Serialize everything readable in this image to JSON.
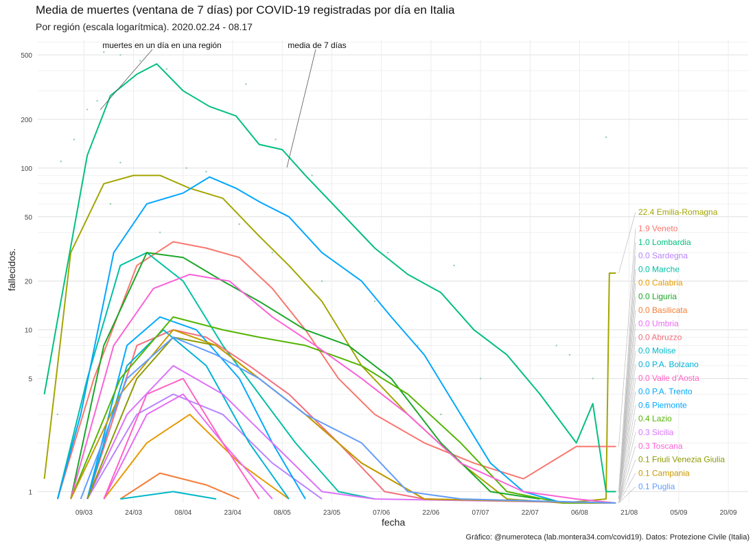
{
  "title": "Media de muertes (ventana de 7 días) por COVID-19 registradas por día en Italia",
  "subtitle": "Por región (escala logarítmica). 2020.02.24 - 08.17",
  "caption": "Gráfico: @numeroteca (lab.montera34.com/covid19). Datos: Protezione Civile (Italia)",
  "chart_data": {
    "type": "line",
    "scale": "log",
    "xlabel": "fecha",
    "ylabel": "fallecidos.",
    "x_start": "2020-02-24",
    "x_end": "2020-08-17",
    "xlim": [
      "2020-02-24",
      "2020-09-26"
    ],
    "ylim": [
      0.85,
      620
    ],
    "grid": true,
    "y_ticks": [
      1,
      5,
      10,
      20,
      50,
      100,
      200,
      500
    ],
    "x_ticks": [
      "09/03",
      "24/03",
      "08/04",
      "23/04",
      "08/05",
      "23/05",
      "07/06",
      "22/06",
      "07/07",
      "22/07",
      "06/08",
      "21/08",
      "05/09",
      "20/09"
    ],
    "annotations": [
      {
        "text": "muertes en un día en una región",
        "x": "2020-03-07",
        "y": 320
      },
      {
        "text": "media de 7 días",
        "x": "2020-05-09",
        "y": 140
      }
    ],
    "series": [
      {
        "name": "Emilia-Romagna",
        "color": "#a3a500",
        "last": "22.4",
        "points": [
          [
            "2020-02-26",
            1.2
          ],
          [
            "2020-03-05",
            30
          ],
          [
            "2020-03-15",
            80
          ],
          [
            "2020-03-24",
            90
          ],
          [
            "2020-04-01",
            90
          ],
          [
            "2020-04-10",
            75
          ],
          [
            "2020-04-20",
            65
          ],
          [
            "2020-05-01",
            38
          ],
          [
            "2020-05-10",
            25
          ],
          [
            "2020-05-20",
            15
          ],
          [
            "2020-06-01",
            6
          ],
          [
            "2020-06-15",
            3
          ],
          [
            "2020-07-01",
            1.5
          ],
          [
            "2020-07-15",
            0.9
          ],
          [
            "2020-08-01",
            0.8
          ],
          [
            "2020-08-14",
            0.9
          ],
          [
            "2020-08-15",
            22.4
          ],
          [
            "2020-08-17",
            22.4
          ]
        ]
      },
      {
        "name": "Veneto",
        "color": "#f8766d",
        "last": "1.9",
        "points": [
          [
            "2020-03-01",
            0.9
          ],
          [
            "2020-03-12",
            5
          ],
          [
            "2020-03-25",
            25
          ],
          [
            "2020-04-05",
            35
          ],
          [
            "2020-04-15",
            32
          ],
          [
            "2020-04-25",
            28
          ],
          [
            "2020-05-05",
            18
          ],
          [
            "2020-05-15",
            10
          ],
          [
            "2020-05-25",
            5
          ],
          [
            "2020-06-05",
            3
          ],
          [
            "2020-06-20",
            2
          ],
          [
            "2020-07-05",
            1.5
          ],
          [
            "2020-07-20",
            1.2
          ],
          [
            "2020-08-05",
            1.9
          ],
          [
            "2020-08-17",
            1.9
          ]
        ]
      },
      {
        "name": "Lombardia",
        "color": "#00bf7d",
        "last": "1.0",
        "points": [
          [
            "2020-02-26",
            4
          ],
          [
            "2020-03-02",
            15
          ],
          [
            "2020-03-10",
            120
          ],
          [
            "2020-03-17",
            280
          ],
          [
            "2020-03-25",
            380
          ],
          [
            "2020-03-31",
            440
          ],
          [
            "2020-04-08",
            300
          ],
          [
            "2020-04-16",
            240
          ],
          [
            "2020-04-24",
            210
          ],
          [
            "2020-05-01",
            140
          ],
          [
            "2020-05-08",
            130
          ],
          [
            "2020-05-15",
            90
          ],
          [
            "2020-05-25",
            55
          ],
          [
            "2020-06-05",
            32
          ],
          [
            "2020-06-15",
            22
          ],
          [
            "2020-06-25",
            17
          ],
          [
            "2020-07-05",
            10
          ],
          [
            "2020-07-15",
            7
          ],
          [
            "2020-07-25",
            4
          ],
          [
            "2020-08-05",
            2
          ],
          [
            "2020-08-10",
            3.5
          ],
          [
            "2020-08-14",
            1
          ],
          [
            "2020-08-17",
            1
          ]
        ]
      },
      {
        "name": "Sardegna",
        "color": "#b983ff",
        "last": "0.0",
        "points": [
          [
            "2020-03-10",
            0.9
          ],
          [
            "2020-03-25",
            3
          ],
          [
            "2020-04-05",
            4
          ],
          [
            "2020-04-20",
            3
          ],
          [
            "2020-05-05",
            1.5
          ],
          [
            "2020-05-20",
            0.9
          ]
        ]
      },
      {
        "name": "Marche",
        "color": "#00bfa5",
        "last": "0.0",
        "points": [
          [
            "2020-03-01",
            0.9
          ],
          [
            "2020-03-10",
            5
          ],
          [
            "2020-03-20",
            25
          ],
          [
            "2020-03-28",
            30
          ],
          [
            "2020-04-08",
            20
          ],
          [
            "2020-04-20",
            8
          ],
          [
            "2020-05-01",
            4
          ],
          [
            "2020-05-12",
            2
          ],
          [
            "2020-05-25",
            1
          ],
          [
            "2020-06-05",
            0.9
          ]
        ]
      },
      {
        "name": "Calabria",
        "color": "#e69a00",
        "last": "0.0",
        "points": [
          [
            "2020-03-15",
            0.9
          ],
          [
            "2020-03-28",
            2
          ],
          [
            "2020-04-10",
            3
          ],
          [
            "2020-04-25",
            1.5
          ],
          [
            "2020-05-10",
            0.9
          ]
        ]
      },
      {
        "name": "Liguria",
        "color": "#1aa628",
        "last": "0.0",
        "points": [
          [
            "2020-03-05",
            0.9
          ],
          [
            "2020-03-15",
            8
          ],
          [
            "2020-03-28",
            30
          ],
          [
            "2020-04-08",
            28
          ],
          [
            "2020-04-20",
            20
          ],
          [
            "2020-05-01",
            15
          ],
          [
            "2020-05-15",
            10
          ],
          [
            "2020-05-28",
            8
          ],
          [
            "2020-06-10",
            5
          ],
          [
            "2020-06-25",
            2
          ],
          [
            "2020-07-10",
            1
          ],
          [
            "2020-07-25",
            0.9
          ]
        ]
      },
      {
        "name": "Basilicata",
        "color": "#f47d37",
        "last": "0.0",
        "points": [
          [
            "2020-03-20",
            0.9
          ],
          [
            "2020-04-01",
            1.3
          ],
          [
            "2020-04-15",
            1.1
          ],
          [
            "2020-04-25",
            0.9
          ]
        ]
      },
      {
        "name": "Umbria",
        "color": "#e76bf3",
        "last": "0.0",
        "points": [
          [
            "2020-03-15",
            0.9
          ],
          [
            "2020-03-28",
            3
          ],
          [
            "2020-04-08",
            4
          ],
          [
            "2020-04-20",
            2
          ],
          [
            "2020-05-05",
            0.9
          ]
        ]
      },
      {
        "name": "Abruzzo",
        "color": "#f2707c",
        "last": "0.0",
        "points": [
          [
            "2020-03-10",
            0.9
          ],
          [
            "2020-03-25",
            8
          ],
          [
            "2020-04-05",
            10
          ],
          [
            "2020-04-15",
            9
          ],
          [
            "2020-04-28",
            6
          ],
          [
            "2020-05-10",
            4
          ],
          [
            "2020-05-25",
            2
          ],
          [
            "2020-06-08",
            1
          ],
          [
            "2020-06-20",
            0.9
          ]
        ]
      },
      {
        "name": "Molise",
        "color": "#00b8c8",
        "last": "0.0",
        "points": [
          [
            "2020-03-20",
            0.9
          ],
          [
            "2020-04-05",
            1
          ],
          [
            "2020-04-18",
            0.9
          ]
        ]
      },
      {
        "name": "P.A. Bolzano",
        "color": "#00b2d6",
        "last": "0.0",
        "points": [
          [
            "2020-03-10",
            0.9
          ],
          [
            "2020-03-22",
            6
          ],
          [
            "2020-04-02",
            10
          ],
          [
            "2020-04-15",
            6
          ],
          [
            "2020-04-28",
            2
          ],
          [
            "2020-05-10",
            0.9
          ]
        ]
      },
      {
        "name": "Valle d'Aosta",
        "color": "#ff61c3",
        "last": "0.0",
        "points": [
          [
            "2020-03-15",
            0.9
          ],
          [
            "2020-03-28",
            4
          ],
          [
            "2020-04-08",
            5
          ],
          [
            "2020-04-20",
            2
          ],
          [
            "2020-05-01",
            0.9
          ]
        ]
      },
      {
        "name": "P.A. Trento",
        "color": "#00a9ff",
        "last": "0.0",
        "points": [
          [
            "2020-03-10",
            0.9
          ],
          [
            "2020-03-22",
            8
          ],
          [
            "2020-04-01",
            12
          ],
          [
            "2020-04-12",
            10
          ],
          [
            "2020-04-25",
            5
          ],
          [
            "2020-05-05",
            2
          ],
          [
            "2020-05-15",
            0.9
          ]
        ]
      },
      {
        "name": "Piemonte",
        "color": "#00a6ff",
        "last": "0.6",
        "points": [
          [
            "2020-03-01",
            0.9
          ],
          [
            "2020-03-08",
            3
          ],
          [
            "2020-03-18",
            30
          ],
          [
            "2020-03-28",
            60
          ],
          [
            "2020-04-08",
            70
          ],
          [
            "2020-04-16",
            88
          ],
          [
            "2020-04-24",
            75
          ],
          [
            "2020-05-01",
            62
          ],
          [
            "2020-05-10",
            50
          ],
          [
            "2020-05-20",
            30
          ],
          [
            "2020-06-01",
            20
          ],
          [
            "2020-06-10",
            12
          ],
          [
            "2020-06-20",
            7
          ],
          [
            "2020-07-01",
            3
          ],
          [
            "2020-07-10",
            1.5
          ],
          [
            "2020-07-20",
            1
          ],
          [
            "2020-08-01",
            0.8
          ],
          [
            "2020-08-17",
            0.6
          ]
        ]
      },
      {
        "name": "Lazio",
        "color": "#53b400",
        "last": "0.4",
        "points": [
          [
            "2020-03-05",
            0.9
          ],
          [
            "2020-03-20",
            5
          ],
          [
            "2020-04-05",
            12
          ],
          [
            "2020-04-20",
            10
          ],
          [
            "2020-05-01",
            9
          ],
          [
            "2020-05-15",
            8
          ],
          [
            "2020-06-01",
            6
          ],
          [
            "2020-06-15",
            4
          ],
          [
            "2020-07-01",
            2
          ],
          [
            "2020-07-15",
            1
          ],
          [
            "2020-08-01",
            0.8
          ],
          [
            "2020-08-17",
            0.4
          ]
        ]
      },
      {
        "name": "Sicilia",
        "color": "#db72fb",
        "last": "0.3",
        "points": [
          [
            "2020-03-10",
            0.9
          ],
          [
            "2020-03-22",
            3
          ],
          [
            "2020-04-05",
            6
          ],
          [
            "2020-04-20",
            4
          ],
          [
            "2020-05-05",
            2
          ],
          [
            "2020-05-20",
            1
          ],
          [
            "2020-06-05",
            0.9
          ],
          [
            "2020-08-17",
            0.3
          ]
        ]
      },
      {
        "name": "Toscana",
        "color": "#fb61d7",
        "last": "0.3",
        "points": [
          [
            "2020-03-05",
            0.9
          ],
          [
            "2020-03-18",
            8
          ],
          [
            "2020-03-30",
            18
          ],
          [
            "2020-04-10",
            22
          ],
          [
            "2020-04-22",
            20
          ],
          [
            "2020-05-05",
            12
          ],
          [
            "2020-05-18",
            8
          ],
          [
            "2020-06-01",
            5
          ],
          [
            "2020-06-15",
            3
          ],
          [
            "2020-07-01",
            1.5
          ],
          [
            "2020-07-20",
            1
          ],
          [
            "2020-08-05",
            0.9
          ],
          [
            "2020-08-17",
            0.3
          ]
        ]
      },
      {
        "name": "Friuli Venezia Giulia",
        "color": "#8b9a00",
        "last": "0.1",
        "points": [
          [
            "2020-03-10",
            0.9
          ],
          [
            "2020-03-25",
            5
          ],
          [
            "2020-04-05",
            9
          ],
          [
            "2020-04-18",
            8
          ],
          [
            "2020-05-01",
            5
          ],
          [
            "2020-05-15",
            3
          ],
          [
            "2020-06-01",
            1.5
          ],
          [
            "2020-06-20",
            0.9
          ],
          [
            "2020-08-17",
            0.1
          ]
        ]
      },
      {
        "name": "Campania",
        "color": "#c59900",
        "last": "0.1",
        "points": [
          [
            "2020-03-05",
            0.9
          ],
          [
            "2020-03-20",
            4
          ],
          [
            "2020-04-05",
            10
          ],
          [
            "2020-04-18",
            8
          ],
          [
            "2020-05-01",
            5
          ],
          [
            "2020-05-15",
            3
          ],
          [
            "2020-06-01",
            1.5
          ],
          [
            "2020-06-20",
            0.9
          ],
          [
            "2020-08-17",
            0.1
          ]
        ]
      },
      {
        "name": "Puglia",
        "color": "#619cff",
        "last": "0.1",
        "points": [
          [
            "2020-03-08",
            0.9
          ],
          [
            "2020-03-22",
            5
          ],
          [
            "2020-04-05",
            9
          ],
          [
            "2020-04-18",
            7
          ],
          [
            "2020-05-01",
            5
          ],
          [
            "2020-05-15",
            3
          ],
          [
            "2020-06-01",
            2
          ],
          [
            "2020-06-15",
            1
          ],
          [
            "2020-07-01",
            0.9
          ],
          [
            "2020-08-17",
            0.1
          ]
        ]
      }
    ],
    "raw_points": [
      [
        "2020-03-15",
        520
      ],
      [
        "2020-03-20",
        500
      ],
      [
        "2020-03-26",
        460
      ],
      [
        "2020-04-03",
        410
      ],
      [
        "2020-03-10",
        230
      ],
      [
        "2020-03-13",
        260
      ],
      [
        "2020-04-27",
        330
      ],
      [
        "2020-05-06",
        150
      ],
      [
        "2020-05-17",
        90
      ],
      [
        "2020-06-09",
        30
      ],
      [
        "2020-06-29",
        25
      ],
      [
        "2020-07-30",
        8
      ],
      [
        "2020-03-02",
        110
      ],
      [
        "2020-03-06",
        150
      ],
      [
        "2020-03-20",
        108
      ],
      [
        "2020-04-09",
        100
      ],
      [
        "2020-04-15",
        95
      ],
      [
        "2020-03-17",
        60
      ],
      [
        "2020-04-25",
        45
      ],
      [
        "2020-04-01",
        40
      ],
      [
        "2020-05-05",
        30
      ],
      [
        "2020-05-20",
        20
      ],
      [
        "2020-06-05",
        15
      ],
      [
        "2020-06-18",
        8
      ],
      [
        "2020-07-07",
        5
      ],
      [
        "2020-07-25",
        4
      ],
      [
        "2020-08-14",
        155
      ],
      [
        "2020-08-03",
        7
      ],
      [
        "2020-08-10",
        5
      ],
      [
        "2020-07-18",
        6
      ],
      [
        "2020-06-25",
        3
      ],
      [
        "2020-02-27",
        5
      ],
      [
        "2020-03-01",
        3
      ]
    ]
  }
}
